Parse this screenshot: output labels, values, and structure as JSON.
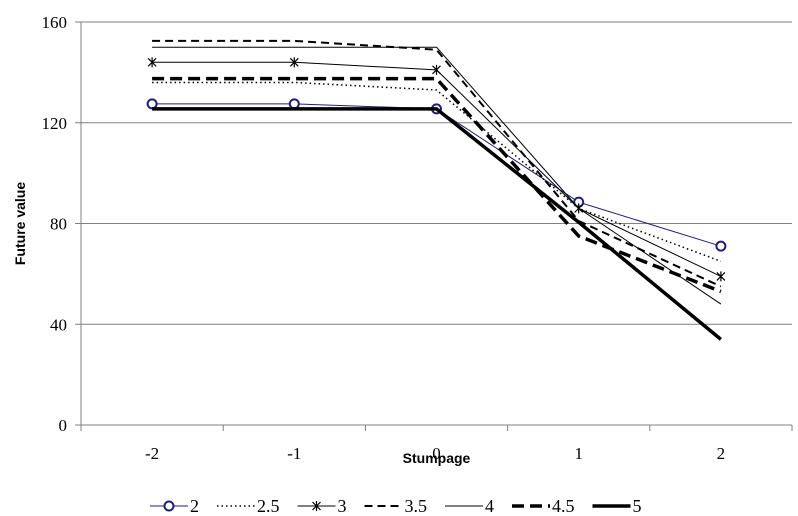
{
  "chart_data": {
    "type": "line",
    "title": "",
    "xlabel": "Stumpage",
    "ylabel": "Future value",
    "x": [
      -2,
      -1,
      0,
      1,
      2
    ],
    "x_tick_labels": [
      "-2",
      "-1",
      "0",
      "1",
      "2"
    ],
    "ylim": [
      0,
      160
    ],
    "y_ticks": [
      0,
      40,
      80,
      120,
      160
    ],
    "y_tick_labels": [
      "0",
      "40",
      "80",
      "120",
      "160"
    ],
    "grid": "horizontal",
    "legend_position": "bottom",
    "series": [
      {
        "name": "2",
        "values": [
          127.5,
          127.5,
          125.5,
          88.5,
          71
        ],
        "style": "circle-marker",
        "color": "#1f1f7a"
      },
      {
        "name": "2.5",
        "values": [
          136,
          136,
          133,
          86,
          65
        ],
        "style": "dotted",
        "color": "#000000"
      },
      {
        "name": "3",
        "values": [
          144,
          144,
          141,
          86,
          59
        ],
        "style": "star-marker",
        "color": "#000000"
      },
      {
        "name": "3.5",
        "values": [
          152.5,
          152.5,
          149,
          81,
          55
        ],
        "style": "dashed",
        "color": "#000000"
      },
      {
        "name": "4",
        "values": [
          150,
          150,
          150,
          86,
          48
        ],
        "style": "thin",
        "color": "#000000"
      },
      {
        "name": "4.5",
        "values": [
          137.5,
          137.5,
          137.5,
          75,
          53
        ],
        "style": "thick-dashed",
        "color": "#000000"
      },
      {
        "name": "5",
        "values": [
          125.5,
          125.5,
          125.5,
          80.5,
          34
        ],
        "style": "thick",
        "color": "#000000"
      }
    ]
  }
}
